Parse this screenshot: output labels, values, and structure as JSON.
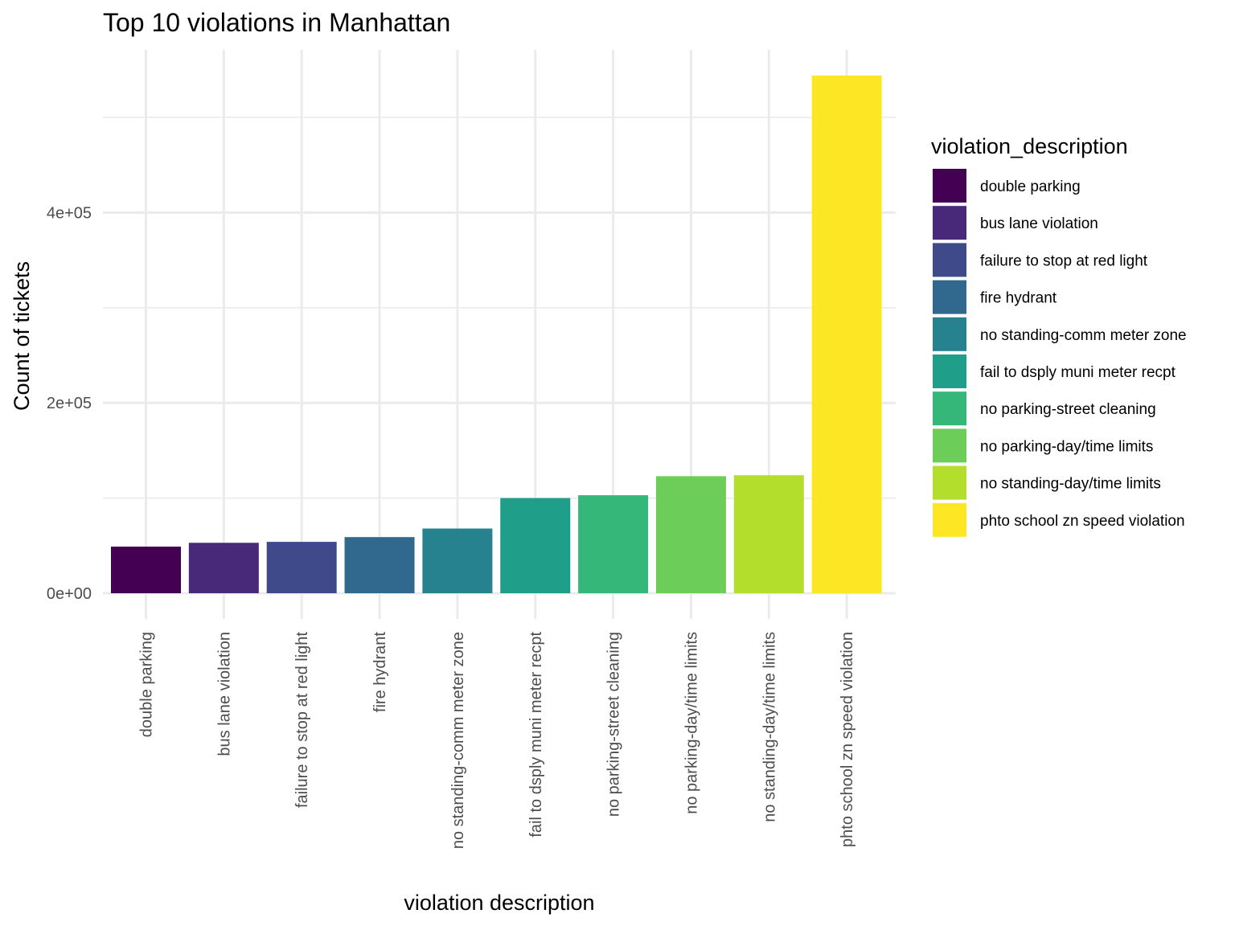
{
  "chart_data": {
    "type": "bar",
    "title": "Top 10 violations in Manhattan",
    "xlabel": "violation description",
    "ylabel": "Count of tickets",
    "categories": [
      "double parking",
      "bus lane violation",
      "failure to stop at red light",
      "fire hydrant",
      "no standing-comm meter zone",
      "fail to dsply muni meter recpt",
      "no parking-street cleaning",
      "no parking-day/time limits",
      "no standing-day/time limits",
      "phto school zn speed violation"
    ],
    "values": [
      49000,
      53000,
      54000,
      59000,
      68000,
      100000,
      103000,
      123000,
      124000,
      544000
    ],
    "colors": [
      "#440154",
      "#482878",
      "#3E4A89",
      "#31688E",
      "#26828E",
      "#1F9E89",
      "#35B779",
      "#6DCD59",
      "#B4DE2C",
      "#FDE725"
    ],
    "ylim": [
      -27000,
      571000
    ],
    "yticks": [
      0,
      200000,
      400000
    ],
    "ytick_labels": [
      "0e+00",
      "2e+05",
      "4e+05"
    ],
    "y_minor_ticks": [
      100000,
      300000,
      500000
    ],
    "grid": true,
    "legend": {
      "title": "violation_description",
      "placement": "right"
    }
  }
}
